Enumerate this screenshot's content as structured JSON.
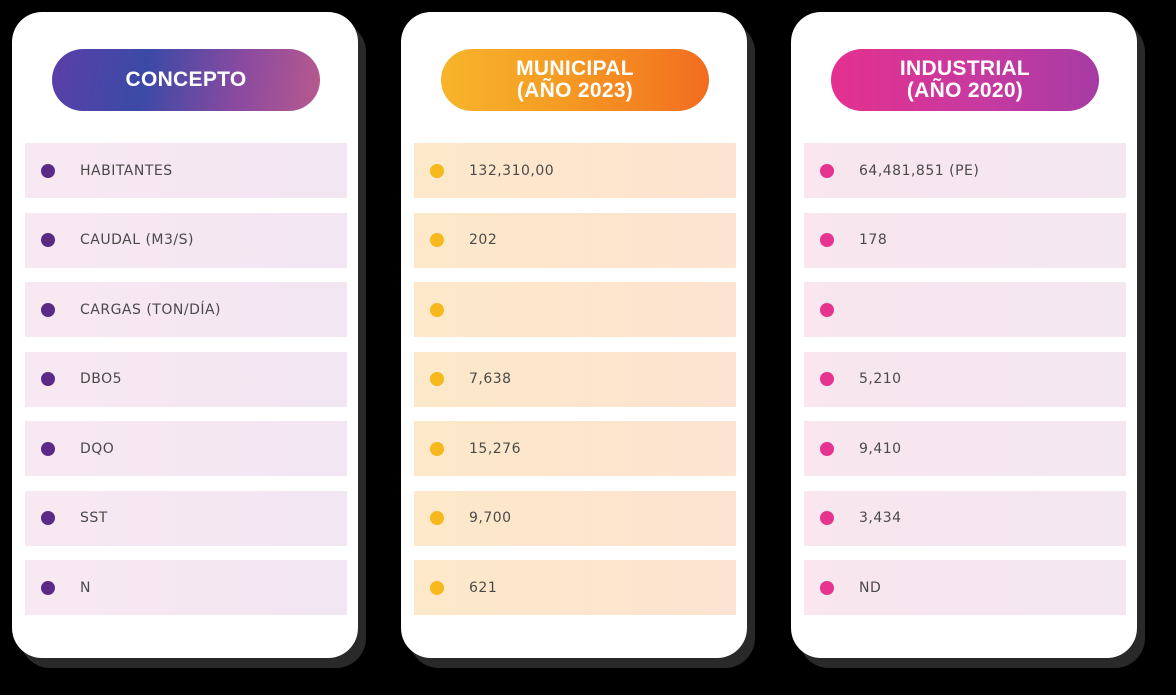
{
  "colors": {
    "concepto_dot": "#5b2a86",
    "municipal_dot": "#f6b81c",
    "industrial_dot": "#e5338f"
  },
  "cards": {
    "concepto": {
      "title": "CONCEPTO",
      "rows": [
        "HABITANTES",
        "CAUDAL (M3/S)",
        "CARGAS (TON/DÍA)",
        "DBO5",
        "DQO",
        "SST",
        "N"
      ]
    },
    "municipal": {
      "title_line1": "MUNICIPAL",
      "title_line2": "(AÑO 2023)",
      "rows": [
        "132,310,00",
        "202",
        "",
        "7,638",
        "15,276",
        "9,700",
        "621"
      ]
    },
    "industrial": {
      "title_line1": "INDUSTRIAL",
      "title_line2": "(AÑO 2020)",
      "rows": [
        "64,481,851 (PE)",
        "178",
        "",
        "5,210",
        "9,410",
        "3,434",
        "ND"
      ]
    }
  }
}
